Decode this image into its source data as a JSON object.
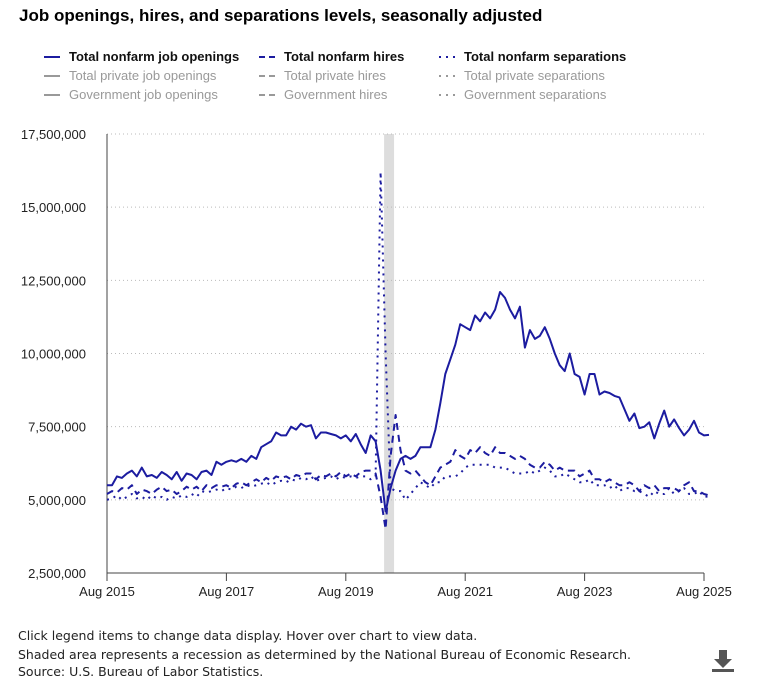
{
  "title": "Job openings, hires, and separations levels, seasonally adjusted",
  "legend": [
    {
      "label": "Total nonfarm job openings",
      "style": "solid",
      "active": true
    },
    {
      "label": "Total nonfarm hires",
      "style": "dash",
      "active": true
    },
    {
      "label": "Total nonfarm separations",
      "style": "dot",
      "active": true
    },
    {
      "label": "Total private job openings",
      "style": "solid",
      "active": false
    },
    {
      "label": "Total private hires",
      "style": "dash",
      "active": false
    },
    {
      "label": "Total private separations",
      "style": "dot",
      "active": false
    },
    {
      "label": "Government job openings",
      "style": "solid",
      "active": false
    },
    {
      "label": "Government hires",
      "style": "dash",
      "active": false
    },
    {
      "label": "Government separations",
      "style": "dot",
      "active": false
    }
  ],
  "colors": {
    "series": "#1c1ca0",
    "inactive": "#999999",
    "recession": "#dddddd",
    "grid": "#bbbbbb"
  },
  "footer": {
    "line1": "Click legend items to change data display. Hover over chart to view data.",
    "line2": "Shaded area represents a recession as determined by the National Bureau of Economic Research.",
    "line3": "Source: U.S. Bureau of Labor Statistics.",
    "download_icon": "download-icon"
  },
  "chart_data": {
    "type": "line",
    "title": "Job openings, hires, and separations levels, seasonally adjusted",
    "x_start": "Aug 2015",
    "x_end": "Aug 2025",
    "x_frequency": "monthly",
    "x_ticks": [
      "Aug 2015",
      "Aug 2017",
      "Aug 2019",
      "Aug 2021",
      "Aug 2023",
      "Aug 2025"
    ],
    "y_ticks": [
      "2,500,000",
      "5,000,000",
      "7,500,000",
      "10,000,000",
      "12,500,000",
      "15,000,000",
      "17,500,000"
    ],
    "ylim": [
      2500000,
      17500000
    ],
    "grid": "horizontal dotted",
    "legend_position": "top",
    "recession": {
      "start": "Feb 2020",
      "end": "Apr 2020"
    },
    "series": [
      {
        "name": "Total nonfarm job openings",
        "style": "solid",
        "values": [
          5500000.0,
          5500000.0,
          5800000.0,
          5750000.0,
          5900000.0,
          6000000.0,
          5800000.0,
          6100000.0,
          5800000.0,
          5850000.0,
          5750000.0,
          5950000.0,
          5850000.0,
          5700000.0,
          5950000.0,
          5650000.0,
          5900000.0,
          5850000.0,
          5700000.0,
          5950000.0,
          6000000.0,
          5850000.0,
          6300000.0,
          6200000.0,
          6300000.0,
          6350000.0,
          6300000.0,
          6400000.0,
          6300000.0,
          6500000.0,
          6400000.0,
          6800000.0,
          6900000.0,
          7000000.0,
          7300000.0,
          7200000.0,
          7200000.0,
          7500000.0,
          7400000.0,
          7600000.0,
          7500000.0,
          7550000.0,
          7100000.0,
          7300000.0,
          7300000.0,
          7250000.0,
          7200000.0,
          7100000.0,
          7200000.0,
          7000000.0,
          7250000.0,
          6900000.0,
          6600000.0,
          7200000.0,
          7000000.0,
          6000000.0,
          4600000.0,
          5400000.0,
          6000000.0,
          6400000.0,
          6500000.0,
          6400000.0,
          6500000.0,
          6800000.0,
          6800000.0,
          6800000.0,
          7400000.0,
          8300000.0,
          9300000.0,
          9800000.0,
          10300000.0,
          11000000.0,
          10900000.0,
          10800000.0,
          11300000.0,
          11100000.0,
          11400000.0,
          11200000.0,
          11500000.0,
          12100000.0,
          11900000.0,
          11500000.0,
          11200000.0,
          11600000.0,
          10200000.0,
          10800000.0,
          10500000.0,
          10600000.0,
          10900000.0,
          10500000.0,
          10000000.0,
          9600000.0,
          9400000.0,
          10000000.0,
          9300000.0,
          9200000.0,
          8600000.0,
          9300000.0,
          9300000.0,
          8600000.0,
          8700000.0,
          8650000.0,
          8550000.0,
          8500000.0,
          8100000.0,
          7700000.0,
          7950000.0,
          7450000.0,
          7500000.0,
          7650000.0,
          7100000.0,
          7600000.0,
          8050000.0,
          7500000.0,
          7750000.0,
          7450000.0,
          7200000.0,
          7400000.0,
          7700000.0,
          7300000.0,
          7200000.0,
          7220000.0
        ]
      },
      {
        "name": "Total nonfarm hires",
        "style": "dash",
        "values": [
          5200000.0,
          5300000.0,
          5250000.0,
          5400000.0,
          5350000.0,
          5500000.0,
          5200000.0,
          5350000.0,
          5300000.0,
          5200000.0,
          5350000.0,
          5450000.0,
          5300000.0,
          5350000.0,
          5200000.0,
          5300000.0,
          5450000.0,
          5350000.0,
          5450000.0,
          5300000.0,
          5500000.0,
          5400000.0,
          5500000.0,
          5450000.0,
          5500000.0,
          5400000.0,
          5550000.0,
          5600000.0,
          5500000.0,
          5600000.0,
          5700000.0,
          5600000.0,
          5750000.0,
          5650000.0,
          5800000.0,
          5750000.0,
          5800000.0,
          5700000.0,
          5850000.0,
          5800000.0,
          5900000.0,
          5900000.0,
          5700000.0,
          5850000.0,
          5800000.0,
          5900000.0,
          5800000.0,
          5950000.0,
          5800000.0,
          5900000.0,
          5800000.0,
          5950000.0,
          6000000.0,
          6000000.0,
          5900000.0,
          5100000.0,
          4000000.0,
          6500000.0,
          7900000.0,
          6700000.0,
          6000000.0,
          5900000.0,
          6000000.0,
          5800000.0,
          5600000.0,
          5500000.0,
          5800000.0,
          6100000.0,
          6200000.0,
          6300000.0,
          6700000.0,
          6500000.0,
          6400000.0,
          6700000.0,
          6600000.0,
          6800000.0,
          6600000.0,
          6500000.0,
          6800000.0,
          6600000.0,
          6600000.0,
          6500000.0,
          6400000.0,
          6500000.0,
          6400000.0,
          6200000.0,
          6100000.0,
          6100000.0,
          6300000.0,
          6200000.0,
          6000000.0,
          6100000.0,
          6000000.0,
          6000000.0,
          6000000.0,
          5800000.0,
          5900000.0,
          6000000.0,
          5700000.0,
          5700000.0,
          5600000.0,
          5700000.0,
          5600000.0,
          5500000.0,
          5500000.0,
          5600000.0,
          5500000.0,
          5300000.0,
          5500000.0,
          5400000.0,
          5500000.0,
          5300000.0,
          5400000.0,
          5400000.0,
          5400000.0,
          5300000.0,
          5500000.0,
          5600000.0,
          5300000.0,
          5300000.0,
          5200000.0,
          5150000.0
        ]
      },
      {
        "name": "Total nonfarm separations",
        "style": "dot",
        "values": [
          5000000.0,
          5050000.0,
          5150000.0,
          5000000.0,
          5100000.0,
          5200000.0,
          5050000.0,
          5100000.0,
          5000000.0,
          5150000.0,
          5050000.0,
          5100000.0,
          5000000.0,
          5100000.0,
          5050000.0,
          5150000.0,
          5100000.0,
          5200000.0,
          5100000.0,
          5300000.0,
          5250000.0,
          5300000.0,
          5350000.0,
          5300000.0,
          5400000.0,
          5350000.0,
          5450000.0,
          5400000.0,
          5500000.0,
          5450000.0,
          5500000.0,
          5550000.0,
          5600000.0,
          5500000.0,
          5600000.0,
          5650000.0,
          5600000.0,
          5700000.0,
          5650000.0,
          5750000.0,
          5700000.0,
          5800000.0,
          5650000.0,
          5700000.0,
          5750000.0,
          5800000.0,
          5700000.0,
          5800000.0,
          5750000.0,
          5800000.0,
          5750000.0,
          5800000.0,
          5800000.0,
          5700000.0,
          5800000.0,
          16200000.0,
          10000000.0,
          5400000.0,
          5300000.0,
          5300000.0,
          5000000.0,
          5200000.0,
          5400000.0,
          5600000.0,
          5500000.0,
          5400000.0,
          5600000.0,
          5600000.0,
          5800000.0,
          5800000.0,
          5800000.0,
          5900000.0,
          6100000.0,
          6200000.0,
          6200000.0,
          6200000.0,
          6200000.0,
          6200000.0,
          6100000.0,
          6100000.0,
          6100000.0,
          6000000.0,
          5900000.0,
          5900000.0,
          5900000.0,
          6000000.0,
          5900000.0,
          6000000.0,
          6100000.0,
          6000000.0,
          5800000.0,
          5800000.0,
          5900000.0,
          5800000.0,
          5700000.0,
          5600000.0,
          5600000.0,
          5700000.0,
          5500000.0,
          5500000.0,
          5500000.0,
          5400000.0,
          5500000.0,
          5300000.0,
          5400000.0,
          5400000.0,
          5300000.0,
          5300000.0,
          5200000.0,
          5100000.0,
          5300000.0,
          5200000.0,
          5200000.0,
          5400000.0,
          5200000.0,
          5300000.0,
          5400000.0,
          5200000.0,
          5200000.0,
          5300000.0,
          5100000.0,
          5120000.0
        ]
      }
    ]
  }
}
